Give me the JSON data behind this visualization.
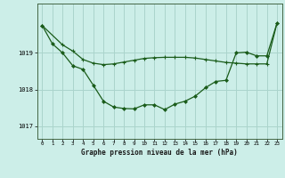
{
  "title": "Graphe pression niveau de la mer (hPa)",
  "bg_color": "#cceee8",
  "plot_bg_color": "#cceee8",
  "grid_color": "#aad4cc",
  "line_color": "#1a5c1a",
  "xlim": [
    -0.5,
    23.5
  ],
  "ylim": [
    1016.65,
    1020.35
  ],
  "yticks": [
    1017,
    1018,
    1019
  ],
  "xticks": [
    0,
    1,
    2,
    3,
    4,
    5,
    6,
    7,
    8,
    9,
    10,
    11,
    12,
    13,
    14,
    15,
    16,
    17,
    18,
    19,
    20,
    21,
    22,
    23
  ],
  "series1_x": [
    0,
    1,
    2,
    3,
    4,
    5,
    6,
    7,
    8,
    9,
    10,
    11,
    12,
    13,
    14,
    15,
    16,
    17,
    18,
    19,
    20,
    21,
    22,
    23
  ],
  "series1_y": [
    1019.75,
    1019.25,
    1019.0,
    1018.65,
    1018.55,
    1018.12,
    1017.68,
    1017.52,
    1017.48,
    1017.47,
    1017.58,
    1017.58,
    1017.45,
    1017.6,
    1017.68,
    1017.82,
    1018.05,
    1018.22,
    1018.25,
    1019.0,
    1019.02,
    1018.92,
    1018.92,
    1019.82
  ],
  "series2_x": [
    0,
    2,
    3,
    4,
    5,
    6,
    7,
    8,
    9,
    10,
    11,
    12,
    13,
    14,
    15,
    16,
    17,
    18,
    19,
    20,
    21,
    22,
    23
  ],
  "series2_y": [
    1019.75,
    1019.22,
    1019.05,
    1018.82,
    1018.72,
    1018.68,
    1018.7,
    1018.75,
    1018.8,
    1018.85,
    1018.87,
    1018.88,
    1018.88,
    1018.88,
    1018.86,
    1018.82,
    1018.78,
    1018.74,
    1018.72,
    1018.7,
    1018.7,
    1018.7,
    1019.82
  ],
  "marker1": "D",
  "marker2": "+",
  "marker_size1": 2.0,
  "marker_size2": 3.5
}
